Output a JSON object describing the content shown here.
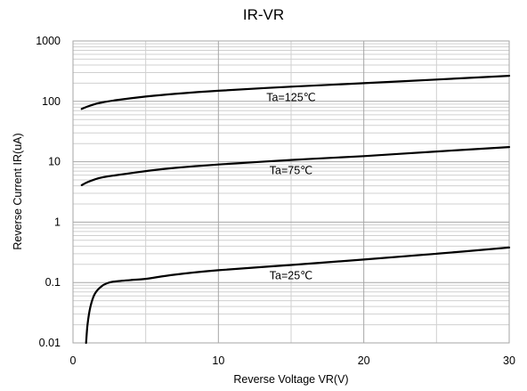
{
  "chart_data": {
    "type": "line",
    "title": "IR-VR",
    "xlabel": "Reverse Voltage   VR(V)",
    "ylabel": "Reverse Current   IR(uA)",
    "xlim": [
      0,
      30
    ],
    "ylim": [
      0.01,
      1000
    ],
    "yscale": "log",
    "grid": true,
    "x_ticks": [
      "0",
      "10",
      "20",
      "30"
    ],
    "y_ticks": [
      "0.01",
      "0.1",
      "1",
      "10",
      "100",
      "1000"
    ],
    "series": [
      {
        "name": "Ta=125℃",
        "x": [
          0.6,
          1,
          1.5,
          2,
          3,
          5,
          7,
          10,
          15,
          20,
          25,
          30
        ],
        "y": [
          75,
          82,
          90,
          96,
          105,
          120,
          133,
          150,
          175,
          200,
          230,
          265
        ]
      },
      {
        "name": "Ta=75℃",
        "x": [
          0.6,
          1,
          1.5,
          2,
          3,
          5,
          7,
          10,
          15,
          20,
          25,
          30
        ],
        "y": [
          4.1,
          4.6,
          5.1,
          5.5,
          6.0,
          7.0,
          7.9,
          9.0,
          10.7,
          12.4,
          14.8,
          17.5
        ]
      },
      {
        "name": "Ta=25℃",
        "x": [
          0.9,
          1.0,
          1.2,
          1.5,
          2.0,
          2.5,
          3,
          4,
          5,
          7,
          10,
          15,
          20,
          25,
          30
        ],
        "y": [
          0.01,
          0.02,
          0.04,
          0.065,
          0.088,
          0.1,
          0.105,
          0.11,
          0.115,
          0.135,
          0.16,
          0.195,
          0.24,
          0.3,
          0.38
        ]
      }
    ],
    "annotations": [
      "Ta=125℃",
      "Ta=75℃",
      "Ta=25℃"
    ]
  }
}
